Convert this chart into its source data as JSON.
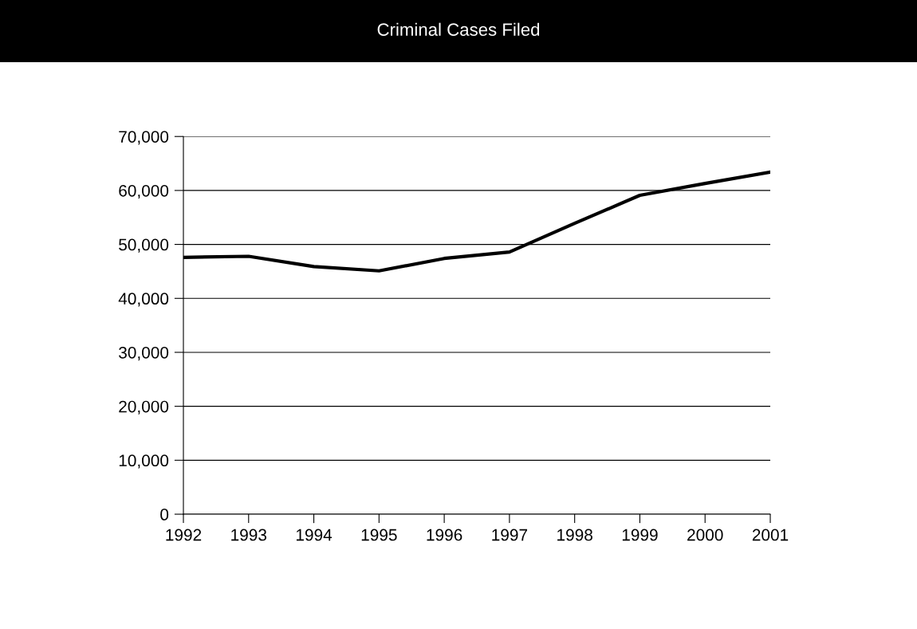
{
  "chart_data": {
    "type": "line",
    "title": "Criminal Cases Filed",
    "categories": [
      "1992",
      "1993",
      "1994",
      "1995",
      "1996",
      "1997",
      "1998",
      "1999",
      "2000",
      "2001"
    ],
    "series": [
      {
        "color": "#000000",
        "values": [
          47600,
          47800,
          45900,
          45100,
          47400,
          48600,
          53900,
          59100,
          61300,
          63400
        ]
      }
    ],
    "ylim": [
      0,
      70000
    ],
    "yticks": [
      {
        "value": 0,
        "label": "0"
      },
      {
        "value": 10000,
        "label": "10,000"
      },
      {
        "value": 20000,
        "label": "20,000"
      },
      {
        "value": 30000,
        "label": "30,000"
      },
      {
        "value": 40000,
        "label": "40,000"
      },
      {
        "value": 50000,
        "label": "50,000"
      },
      {
        "value": 60000,
        "label": "60,000"
      },
      {
        "value": 70000,
        "label": "70,000"
      }
    ],
    "grid": "y",
    "legend": false,
    "marker": "none",
    "line_style": "solid"
  }
}
